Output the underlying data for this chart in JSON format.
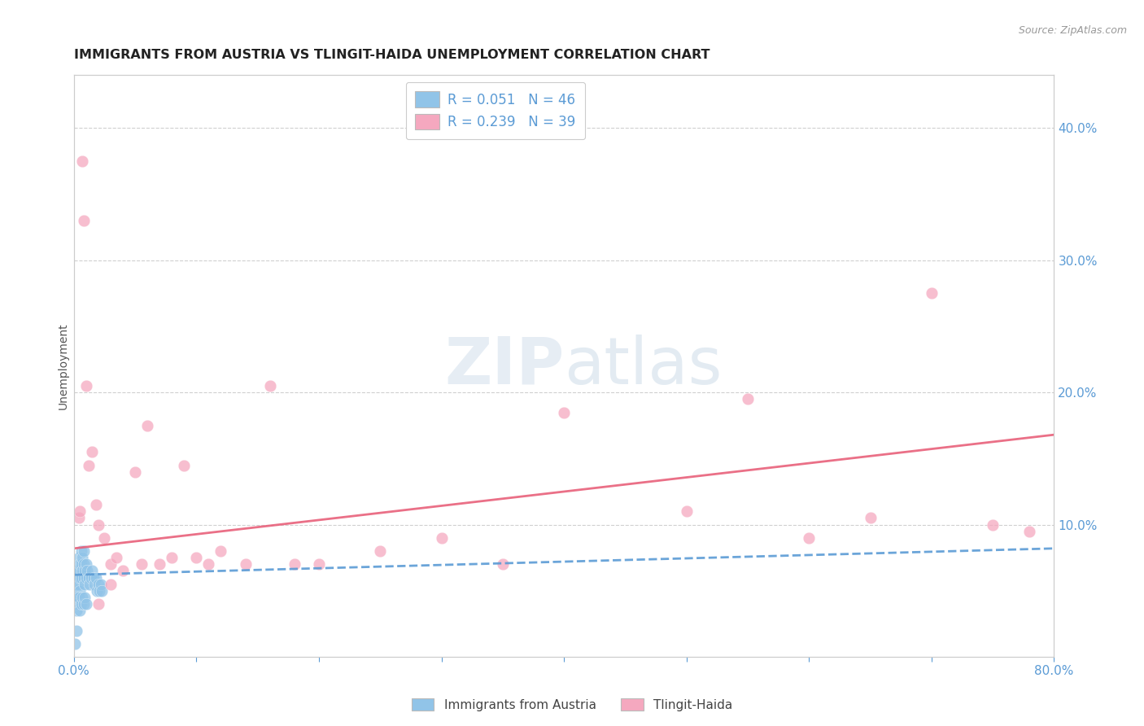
{
  "title": "IMMIGRANTS FROM AUSTRIA VS TLINGIT-HAIDA UNEMPLOYMENT CORRELATION CHART",
  "source": "Source: ZipAtlas.com",
  "ylabel": "Unemployment",
  "watermark": "ZIPatlas",
  "xlim": [
    0.0,
    0.8
  ],
  "ylim": [
    0.0,
    0.44
  ],
  "xticks": [
    0.0,
    0.1,
    0.2,
    0.3,
    0.4,
    0.5,
    0.6,
    0.7,
    0.8
  ],
  "xticklabels": [
    "0.0%",
    "",
    "",
    "",
    "",
    "",
    "",
    "",
    "80.0%"
  ],
  "yticks_right": [
    0.1,
    0.2,
    0.3,
    0.4
  ],
  "yticklabels_right": [
    "10.0%",
    "20.0%",
    "30.0%",
    "40.0%"
  ],
  "blue_color": "#91c4e8",
  "pink_color": "#f5a8bf",
  "blue_line_color": "#5b9bd5",
  "pink_line_color": "#e8607a",
  "axis_color": "#5b9bd5",
  "legend_R1": "R = 0.051",
  "legend_N1": "N = 46",
  "legend_R2": "R = 0.239",
  "legend_N2": "N = 39",
  "legend_label1": "Immigrants from Austria",
  "legend_label2": "Tlingit-Haida",
  "blue_x": [
    0.001,
    0.002,
    0.002,
    0.003,
    0.003,
    0.003,
    0.004,
    0.004,
    0.004,
    0.005,
    0.005,
    0.005,
    0.006,
    0.006,
    0.006,
    0.007,
    0.007,
    0.008,
    0.008,
    0.008,
    0.009,
    0.009,
    0.01,
    0.01,
    0.011,
    0.012,
    0.013,
    0.014,
    0.015,
    0.016,
    0.017,
    0.018,
    0.019,
    0.02,
    0.021,
    0.022,
    0.023,
    0.002,
    0.003,
    0.004,
    0.005,
    0.006,
    0.007,
    0.008,
    0.009,
    0.01
  ],
  "blue_y": [
    0.01,
    0.02,
    0.055,
    0.06,
    0.065,
    0.045,
    0.055,
    0.065,
    0.075,
    0.06,
    0.05,
    0.07,
    0.06,
    0.07,
    0.08,
    0.065,
    0.075,
    0.06,
    0.07,
    0.08,
    0.055,
    0.065,
    0.06,
    0.07,
    0.065,
    0.06,
    0.055,
    0.06,
    0.065,
    0.06,
    0.055,
    0.06,
    0.05,
    0.055,
    0.05,
    0.055,
    0.05,
    0.035,
    0.04,
    0.045,
    0.035,
    0.04,
    0.045,
    0.04,
    0.045,
    0.04
  ],
  "pink_x": [
    0.004,
    0.005,
    0.007,
    0.008,
    0.01,
    0.012,
    0.015,
    0.018,
    0.02,
    0.025,
    0.03,
    0.035,
    0.04,
    0.05,
    0.055,
    0.06,
    0.07,
    0.08,
    0.09,
    0.1,
    0.11,
    0.12,
    0.14,
    0.16,
    0.18,
    0.2,
    0.25,
    0.3,
    0.35,
    0.4,
    0.5,
    0.55,
    0.6,
    0.65,
    0.7,
    0.75,
    0.78,
    0.02,
    0.03
  ],
  "pink_y": [
    0.105,
    0.11,
    0.375,
    0.33,
    0.205,
    0.145,
    0.155,
    0.115,
    0.1,
    0.09,
    0.07,
    0.075,
    0.065,
    0.14,
    0.07,
    0.175,
    0.07,
    0.075,
    0.145,
    0.075,
    0.07,
    0.08,
    0.07,
    0.205,
    0.07,
    0.07,
    0.08,
    0.09,
    0.07,
    0.185,
    0.11,
    0.195,
    0.09,
    0.105,
    0.275,
    0.1,
    0.095,
    0.04,
    0.055
  ],
  "blue_trend_x": [
    0.0,
    0.8
  ],
  "blue_trend_y": [
    0.062,
    0.082
  ],
  "pink_trend_x": [
    0.0,
    0.8
  ],
  "pink_trend_y": [
    0.082,
    0.168
  ],
  "background_color": "#ffffff",
  "grid_color": "#d0d0d0",
  "title_fontsize": 11.5,
  "axis_label_fontsize": 10
}
